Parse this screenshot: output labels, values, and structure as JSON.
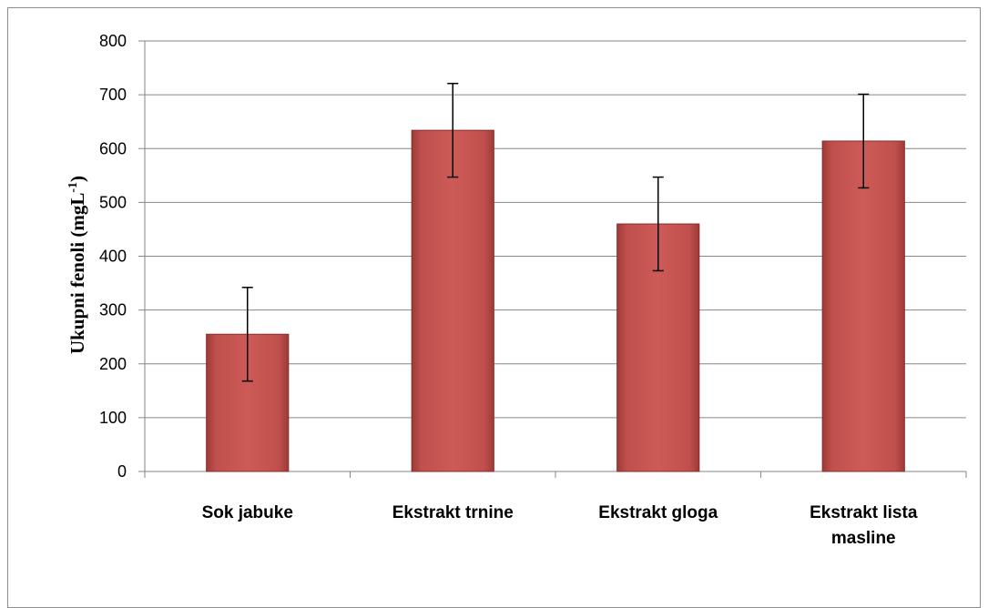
{
  "chart_data": {
    "type": "bar",
    "categories": [
      [
        "Sok jabuke"
      ],
      [
        "Ekstrakt trnine"
      ],
      [
        "Ekstrakt gloga"
      ],
      [
        "Ekstrakt lista",
        "masline"
      ]
    ],
    "values": [
      255,
      634,
      460,
      614
    ],
    "errors": [
      87,
      87,
      87,
      87
    ],
    "title": "",
    "xlabel": "",
    "ylabel": "Ukupni fenoli (mgL",
    "ylabel_superscript": "-1",
    "ylabel_suffix": ")",
    "ylim": [
      0,
      800
    ],
    "yticks": [
      "0",
      "100",
      "200",
      "300",
      "400",
      "500",
      "600",
      "700",
      "800"
    ],
    "grid": true,
    "legend": "none",
    "bar_color": "#c0504d",
    "bar_edge_color": "#8b2d2a"
  }
}
